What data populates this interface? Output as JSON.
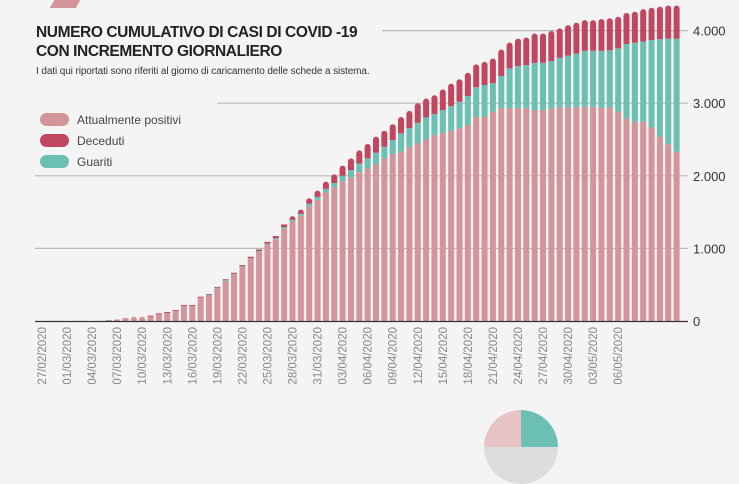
{
  "chart_data": {
    "type": "bar",
    "stacked": true,
    "title": "NUMERO CUMULATIVO DI CASI DI COVID -19\nCON INCREMENTO GIORNALIERO",
    "subtitle": "I dati qui riportati sono riferiti al giorno di caricamento delle schede a sistema.",
    "xlabel": "",
    "ylabel": "",
    "ylim": [
      0,
      4400
    ],
    "y_ticks": [
      0,
      1000,
      2000,
      3000,
      4000
    ],
    "y_tick_labels": [
      "0",
      "1.000",
      "2.000",
      "3.000",
      "4.000"
    ],
    "y_axis_position": "right",
    "grid": true,
    "legend_position": "top-left",
    "categories": [
      "27/02/2020",
      "28/02/2020",
      "29/02/2020",
      "01/03/2020",
      "02/03/2020",
      "03/03/2020",
      "04/03/2020",
      "05/03/2020",
      "06/03/2020",
      "07/03/2020",
      "08/03/2020",
      "09/03/2020",
      "10/03/2020",
      "11/03/2020",
      "12/03/2020",
      "13/03/2020",
      "14/03/2020",
      "15/03/2020",
      "16/03/2020",
      "17/03/2020",
      "18/03/2020",
      "19/03/2020",
      "20/03/2020",
      "21/03/2020",
      "22/03/2020",
      "23/03/2020",
      "24/03/2020",
      "25/03/2020",
      "26/03/2020",
      "27/03/2020",
      "28/03/2020",
      "29/03/2020",
      "30/03/2020",
      "31/03/2020",
      "01/04/2020",
      "02/04/2020",
      "03/04/2020",
      "04/04/2020",
      "05/04/2020",
      "06/04/2020",
      "07/04/2020",
      "08/04/2020",
      "09/04/2020",
      "10/04/2020",
      "11/04/2020",
      "12/04/2020",
      "13/04/2020",
      "14/04/2020",
      "15/04/2020",
      "16/04/2020",
      "17/04/2020",
      "18/04/2020",
      "19/04/2020",
      "20/04/2020",
      "21/04/2020",
      "22/04/2020",
      "23/04/2020",
      "24/04/2020",
      "25/04/2020",
      "26/04/2020",
      "27/04/2020",
      "28/04/2020",
      "29/04/2020",
      "30/04/2020",
      "01/05/2020",
      "02/05/2020",
      "03/05/2020",
      "04/05/2020",
      "05/05/2020",
      "06/05/2020",
      "07/05/2020",
      "08/05/2020",
      "09/05/2020",
      "10/05/2020",
      "11/05/2020",
      "12/05/2020",
      "13/05/2020"
    ],
    "x_tick_labels": [
      "27/02/2020",
      "01/03/2020",
      "04/03/2020",
      "07/03/2020",
      "10/03/2020",
      "13/03/2020",
      "16/03/2020",
      "19/03/2020",
      "22/03/2020",
      "25/03/2020",
      "28/03/2020",
      "31/03/2020",
      "03/04/2020",
      "06/04/2020",
      "09/04/2020",
      "12/04/2020",
      "15/04/2020",
      "18/04/2020",
      "21/04/2020",
      "24/04/2020",
      "27/04/2020",
      "30/04/2020",
      "03/05/2020",
      "06/05/2020"
    ],
    "series": [
      {
        "name": "Attualmente positivi",
        "color": "#d4959a",
        "values": [
          0,
          0,
          0,
          0,
          0,
          0,
          0,
          0,
          10,
          20,
          40,
          60,
          60,
          72,
          103,
          122,
          147,
          215,
          215,
          328,
          360,
          458,
          560,
          648,
          750,
          860,
          955,
          1055,
          1125,
          1270,
          1370,
          1450,
          1580,
          1670,
          1770,
          1840,
          1920,
          1980,
          2050,
          2100,
          2160,
          2240,
          2300,
          2330,
          2400,
          2445,
          2500,
          2560,
          2585,
          2620,
          2655,
          2700,
          2810,
          2810,
          2880,
          2930,
          2930,
          2930,
          2930,
          2905,
          2905,
          2930,
          2940,
          2940,
          2950,
          2950,
          2950,
          2940,
          2940,
          2880,
          2790,
          2745,
          2745,
          2665,
          2540,
          2435,
          2330
        ]
      },
      {
        "name": "Guariti",
        "color": "#6cc0b3",
        "values": [
          0,
          0,
          0,
          0,
          0,
          0,
          0,
          0,
          4,
          0,
          0,
          0,
          0,
          0,
          0,
          0,
          0,
          0,
          0,
          0,
          2,
          2,
          3,
          3,
          4,
          5,
          8,
          10,
          15,
          20,
          25,
          25,
          35,
          40,
          50,
          60,
          80,
          100,
          120,
          140,
          160,
          160,
          190,
          255,
          255,
          285,
          305,
          290,
          320,
          340,
          365,
          400,
          410,
          440,
          395,
          445,
          550,
          580,
          595,
          650,
          650,
          650,
          685,
          715,
          735,
          770,
          770,
          780,
          790,
          875,
          1025,
          1090,
          1105,
          1205,
          1340,
          1455,
          1560
        ]
      },
      {
        "name": "Deceduti",
        "color": "#c0475f",
        "values": [
          0,
          0,
          0,
          0,
          0,
          0,
          0,
          0,
          0,
          0,
          0,
          0,
          0,
          1,
          2,
          2,
          3,
          5,
          5,
          7,
          8,
          10,
          12,
          14,
          16,
          20,
          22,
          25,
          30,
          40,
          50,
          60,
          75,
          85,
          100,
          120,
          140,
          160,
          180,
          200,
          220,
          220,
          220,
          225,
          240,
          270,
          260,
          260,
          285,
          310,
          310,
          320,
          315,
          320,
          340,
          365,
          355,
          380,
          380,
          405,
          405,
          415,
          405,
          420,
          425,
          425,
          425,
          440,
          440,
          435,
          430,
          425,
          445,
          445,
          450,
          455,
          455
        ]
      }
    ]
  },
  "colors": {
    "background": "#f4f4f4",
    "gridline": "#b9b9b9",
    "axis": "#333333",
    "tick_label": "#888888"
  }
}
